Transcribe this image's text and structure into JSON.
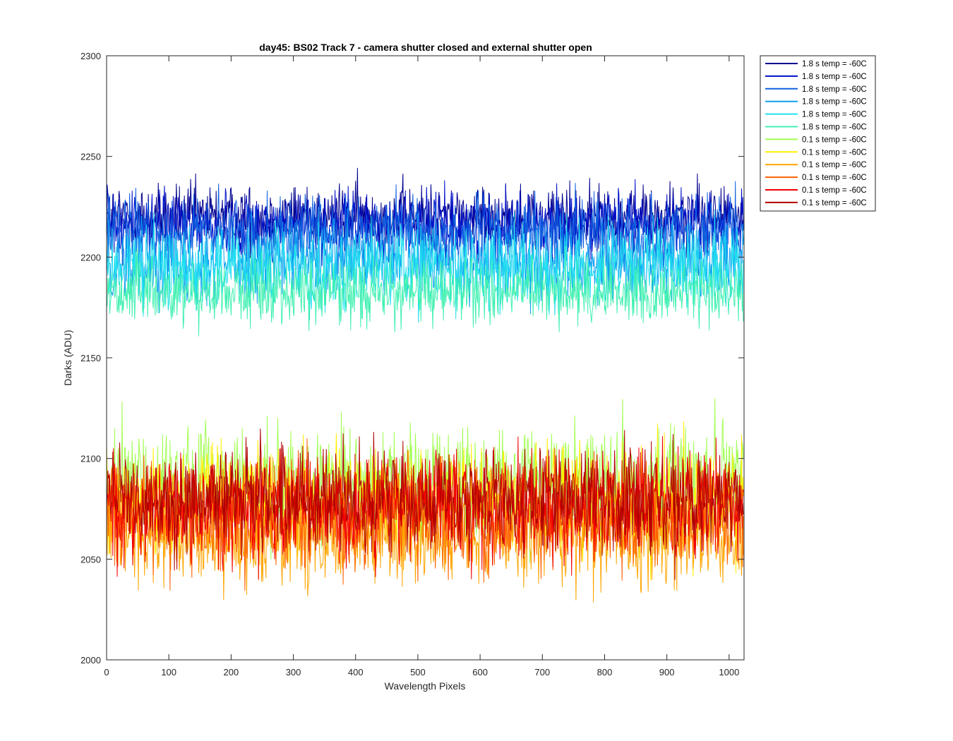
{
  "chart_data": {
    "type": "line",
    "title": "day45: BS02  Track 7 - camera shutter closed and external shutter open",
    "xlabel": "Wavelength Pixels",
    "ylabel": "Darks (ADU)",
    "xlim": [
      0,
      1024
    ],
    "ylim": [
      2000,
      2300
    ],
    "xticks": [
      "0",
      "100",
      "200",
      "300",
      "400",
      "500",
      "600",
      "700",
      "800",
      "900",
      "1000"
    ],
    "yticks": [
      "2000",
      "2050",
      "2100",
      "2150",
      "2200",
      "2250",
      "2300"
    ],
    "grid": false,
    "legend_position": "outside top-right",
    "x_points": 1024,
    "series": [
      {
        "name": "1.8 s temp = -60C",
        "color": "#00008f",
        "mean": 2220,
        "spread": 8
      },
      {
        "name": "1.8 s temp = -60C",
        "color": "#0010c8",
        "mean": 2216,
        "spread": 8
      },
      {
        "name": "1.8 s temp = -60C",
        "color": "#1060e0",
        "mean": 2212,
        "spread": 9
      },
      {
        "name": "1.8 s temp = -60C",
        "color": "#10a0f0",
        "mean": 2198,
        "spread": 10
      },
      {
        "name": "1.8 s temp = -60C",
        "color": "#20e0f0",
        "mean": 2195,
        "spread": 10
      },
      {
        "name": "1.8 s temp = -60C",
        "color": "#40f0b0",
        "mean": 2183,
        "spread": 8
      },
      {
        "name": "0.1 s temp = -60C",
        "color": "#a0ff50",
        "mean": 2088,
        "spread": 14
      },
      {
        "name": "0.1 s temp = -60C",
        "color": "#ffef00",
        "mean": 2080,
        "spread": 13
      },
      {
        "name": "0.1 s temp = -60C",
        "color": "#ffa500",
        "mean": 2062,
        "spread": 13
      },
      {
        "name": "0.1 s temp = -60C",
        "color": "#ff6000",
        "mean": 2072,
        "spread": 13
      },
      {
        "name": "0.1 s temp = -60C",
        "color": "#f00000",
        "mean": 2076,
        "spread": 13
      },
      {
        "name": "0.1 s temp = -60C",
        "color": "#b00000",
        "mean": 2080,
        "spread": 13
      }
    ]
  }
}
